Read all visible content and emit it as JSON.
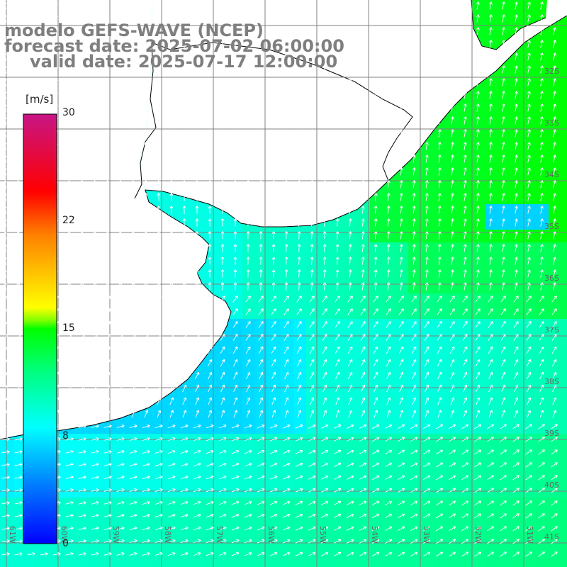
{
  "header": {
    "model": "modelo GEFS-WAVE (NCEP)",
    "forecast": "forecast date: 2025-07-02 06:00:00",
    "valid": "valid date: 2025-07-17 12:00:00"
  },
  "colorbar": {
    "unit": "[m/s]",
    "ticks": [
      "30",
      "22",
      "15",
      "8",
      "0"
    ],
    "colors": [
      "#0000ff",
      "#00bfff",
      "#00ffff",
      "#00ff00",
      "#ffff00",
      "#ff7f00",
      "#ff0000",
      "#c71585"
    ]
  },
  "map": {
    "lat_labels": [
      "32S",
      "33S",
      "34S",
      "35S",
      "36S",
      "37S",
      "38S",
      "39S",
      "40S",
      "41S"
    ],
    "lon_labels": [
      "61W",
      "60W",
      "59W",
      "58W",
      "57W",
      "56W",
      "55W",
      "54W",
      "53W",
      "52W",
      "51W"
    ],
    "grid_color": "#808080",
    "land_color": "#ffffff",
    "coast_color": "#000000"
  }
}
